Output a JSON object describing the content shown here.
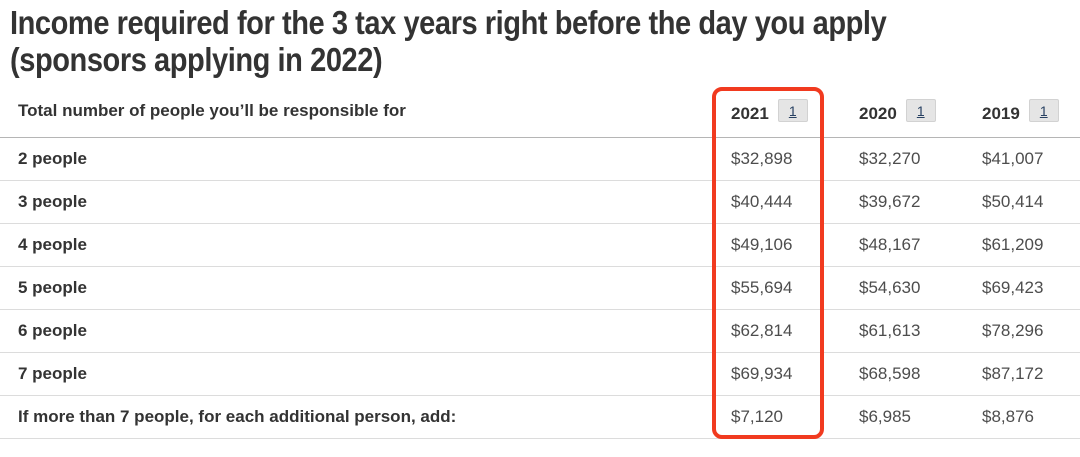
{
  "title": {
    "line1": "Income required for the 3 tax years right before the day you apply",
    "line2": "(sponsors applying in 2022)"
  },
  "table": {
    "header": {
      "people_column_label": "Total number of people you’ll be responsible for",
      "years": [
        {
          "label": "2021",
          "footnote": "1",
          "highlighted": true
        },
        {
          "label": "2020",
          "footnote": "1",
          "highlighted": false
        },
        {
          "label": "2019",
          "footnote": "1",
          "highlighted": false
        }
      ]
    },
    "rows": [
      {
        "label": "2 people",
        "values": [
          "$32,898",
          "$32,270",
          "$41,007"
        ]
      },
      {
        "label": "3 people",
        "values": [
          "$40,444",
          "$39,672",
          "$50,414"
        ]
      },
      {
        "label": "4 people",
        "values": [
          "$49,106",
          "$48,167",
          "$61,209"
        ]
      },
      {
        "label": "5 people",
        "values": [
          "$55,694",
          "$54,630",
          "$69,423"
        ]
      },
      {
        "label": "6 people",
        "values": [
          "$62,814",
          "$61,613",
          "$78,296"
        ]
      },
      {
        "label": "7 people",
        "values": [
          "$69,934",
          "$68,598",
          "$87,172"
        ]
      },
      {
        "label": "If more than 7 people, for each additional person, add:",
        "values": [
          "$7,120",
          "$6,985",
          "$8,876"
        ]
      }
    ]
  },
  "highlight": {
    "column": "2021",
    "color": "#f13a1f"
  },
  "colors": {
    "title_text": "#333333",
    "row_label_text": "#333333",
    "value_text": "#4d4d4d",
    "footnote_link_text": "#284162",
    "footnote_marker_background": "#e5e5e5",
    "header_border": "#b5b5b5",
    "row_border": "#dcdcdc"
  }
}
